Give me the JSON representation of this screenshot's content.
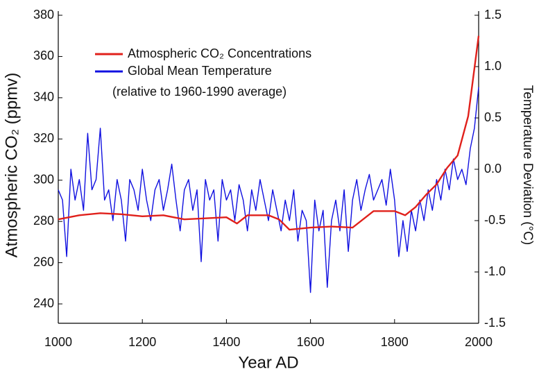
{
  "chart_data": {
    "type": "line",
    "xlabel": "Year AD",
    "ylabel": "Atmospheric CO₂ (ppmv)",
    "y2label": "Temperature Deviation (°C)",
    "note": "(relative to 1960-1990 average)",
    "xlim": [
      1000,
      2000
    ],
    "xticks": [
      1000,
      1200,
      1400,
      1600,
      1800,
      2000
    ],
    "ylim": [
      230.6,
      380
    ],
    "yticks": [
      240,
      260,
      280,
      300,
      320,
      340,
      360,
      380
    ],
    "y2lim": [
      -1.5,
      1.5
    ],
    "y2ticks": [
      -1.5,
      {
        "value": -1,
        "label": "-1.0"
      },
      -0.5,
      {
        "value": 0,
        "label": "0.0"
      },
      0.5,
      {
        "value": 1,
        "label": "1.0"
      },
      1.5
    ],
    "series": [
      {
        "name": "Atmospheric CO₂ Concentrations",
        "color": "#e0201b",
        "x": [
          1000,
          1050,
          1100,
          1150,
          1200,
          1250,
          1300,
          1350,
          1400,
          1425,
          1450,
          1500,
          1525,
          1550,
          1600,
          1650,
          1700,
          1750,
          1800,
          1825,
          1850,
          1875,
          1900,
          1925,
          1950,
          1975,
          2000
        ],
        "values": [
          281,
          283,
          284,
          283.5,
          282.5,
          283,
          281,
          281.5,
          282,
          279,
          283,
          283,
          281,
          276,
          277,
          277.5,
          277,
          285,
          285,
          283,
          287,
          293,
          298,
          306,
          312,
          331,
          370
        ]
      },
      {
        "name": "Global Mean Temperature",
        "color": "#1010e0",
        "axis": "y2",
        "x": [
          1000,
          1010,
          1020,
          1030,
          1040,
          1050,
          1060,
          1070,
          1080,
          1090,
          1100,
          1110,
          1120,
          1130,
          1140,
          1150,
          1160,
          1170,
          1180,
          1190,
          1200,
          1210,
          1220,
          1230,
          1240,
          1250,
          1260,
          1270,
          1280,
          1290,
          1300,
          1310,
          1320,
          1330,
          1340,
          1350,
          1360,
          1370,
          1380,
          1390,
          1400,
          1410,
          1420,
          1430,
          1440,
          1450,
          1460,
          1470,
          1480,
          1490,
          1500,
          1510,
          1520,
          1530,
          1540,
          1550,
          1560,
          1570,
          1580,
          1590,
          1600,
          1610,
          1620,
          1630,
          1640,
          1650,
          1660,
          1670,
          1680,
          1690,
          1700,
          1710,
          1720,
          1730,
          1740,
          1750,
          1760,
          1770,
          1780,
          1790,
          1800,
          1810,
          1820,
          1830,
          1840,
          1850,
          1860,
          1870,
          1880,
          1890,
          1900,
          1910,
          1920,
          1930,
          1940,
          1950,
          1960,
          1970,
          1980,
          1990,
          2000
        ],
        "values": [
          -0.2,
          -0.3,
          -0.85,
          0.0,
          -0.3,
          -0.1,
          -0.4,
          0.35,
          -0.2,
          -0.1,
          0.4,
          -0.3,
          -0.2,
          -0.5,
          -0.1,
          -0.3,
          -0.7,
          -0.1,
          -0.2,
          -0.4,
          0.0,
          -0.3,
          -0.5,
          -0.2,
          -0.1,
          -0.4,
          -0.2,
          0.05,
          -0.3,
          -0.6,
          -0.2,
          -0.1,
          -0.4,
          -0.2,
          -0.9,
          -0.1,
          -0.3,
          -0.2,
          -0.7,
          -0.1,
          -0.3,
          -0.2,
          -0.5,
          -0.15,
          -0.3,
          -0.6,
          -0.2,
          -0.4,
          -0.1,
          -0.3,
          -0.5,
          -0.2,
          -0.4,
          -0.6,
          -0.3,
          -0.5,
          -0.2,
          -0.7,
          -0.4,
          -0.5,
          -1.2,
          -0.3,
          -0.6,
          -0.4,
          -1.15,
          -0.5,
          -0.3,
          -0.6,
          -0.2,
          -0.8,
          -0.3,
          -0.1,
          -0.4,
          -0.2,
          -0.05,
          -0.3,
          -0.2,
          -0.1,
          -0.35,
          0.0,
          -0.3,
          -0.85,
          -0.5,
          -0.8,
          -0.4,
          -0.6,
          -0.3,
          -0.5,
          -0.2,
          -0.4,
          -0.1,
          -0.3,
          0.0,
          -0.2,
          0.1,
          -0.1,
          0.0,
          -0.15,
          0.2,
          0.4,
          0.8
        ]
      }
    ]
  }
}
